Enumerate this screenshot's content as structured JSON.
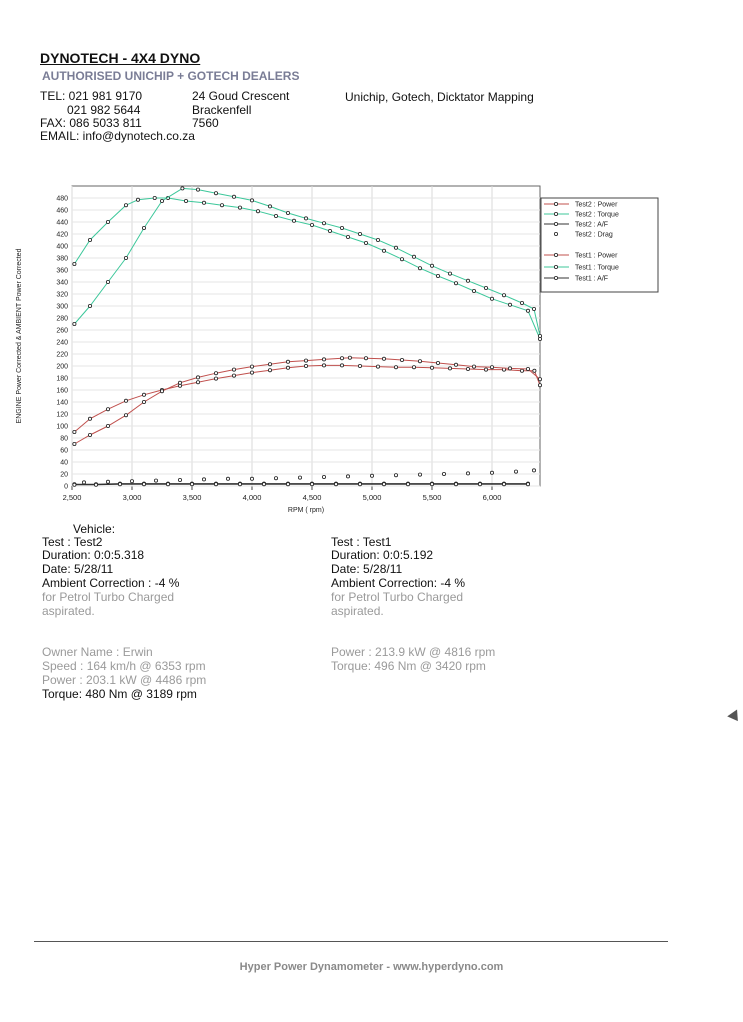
{
  "header": {
    "company": "DYNOTECH - 4X4 DYNO",
    "dealers": "AUTHORISED UNICHIP + GOTECH DEALERS",
    "tel_line1": "TEL: 021 981 9170",
    "tel_line2": "021 982 5644",
    "fax": "FAX: 086 5033 811",
    "email": "EMAIL: info@dynotech.co.za",
    "address1": "24 Goud Crescent",
    "address2": "Brackenfell",
    "address3": "7560",
    "services": "Unichip, Gotech, Dicktator Mapping"
  },
  "colors": {
    "power": "#c0504d",
    "torque": "#3cc79a",
    "af": "#333333",
    "drag": "#777777",
    "marker": "#222222"
  },
  "chart_data": {
    "type": "line",
    "title": "",
    "xlabel": "RPM ( rpm)",
    "ylabel": "ENGINE Power Corrected & AMBIENT Power Corrected",
    "xlim": [
      2500,
      6400
    ],
    "ylim": [
      0,
      500
    ],
    "x_ticks": [
      2500,
      3000,
      3500,
      4000,
      4500,
      5000,
      5500,
      6000
    ],
    "x_tick_labels": [
      "2,500",
      "3,000",
      "3,500",
      "4,000",
      "4,500",
      "5,000",
      "5,500",
      "6,000"
    ],
    "y_ticks": [
      0,
      20,
      40,
      60,
      80,
      100,
      120,
      140,
      160,
      180,
      200,
      220,
      240,
      260,
      280,
      300,
      320,
      340,
      360,
      380,
      400,
      420,
      440,
      460,
      480
    ],
    "grid": true,
    "legend_position": "right",
    "legend": [
      "Test2 : Power",
      "Test2 : Torque",
      "Test2 : A/F",
      "Test2 : Drag",
      "Test1 : Power",
      "Test1 : Torque",
      "Test1 : A/F"
    ],
    "series": [
      {
        "name": "Test2 : Power",
        "x": [
          2520,
          2650,
          2800,
          2950,
          3100,
          3250,
          3400,
          3550,
          3700,
          3850,
          4000,
          4150,
          4300,
          4450,
          4600,
          4750,
          4900,
          5050,
          5200,
          5350,
          5500,
          5650,
          5800,
          5950,
          6100,
          6250,
          6353,
          6400
        ],
        "y": [
          90,
          112,
          128,
          142,
          152,
          160,
          167,
          173,
          179,
          184,
          189,
          193,
          197,
          200,
          201,
          201,
          200,
          199,
          198,
          198,
          197,
          196,
          195,
          194,
          194,
          192,
          192,
          168
        ]
      },
      {
        "name": "Test2 : Torque",
        "x": [
          2520,
          2650,
          2800,
          2950,
          3050,
          3189,
          3300,
          3450,
          3600,
          3750,
          3900,
          4050,
          4200,
          4350,
          4500,
          4650,
          4800,
          4950,
          5100,
          5250,
          5400,
          5550,
          5700,
          5850,
          6000,
          6150,
          6300,
          6400
        ],
        "y": [
          370,
          410,
          440,
          468,
          477,
          480,
          480,
          475,
          472,
          468,
          464,
          458,
          450,
          442,
          435,
          425,
          415,
          405,
          392,
          378,
          363,
          350,
          338,
          325,
          312,
          302,
          292,
          245
        ]
      },
      {
        "name": "Test2 : A/F",
        "x": [
          2520,
          2700,
          2900,
          3100,
          3300,
          3500,
          3700,
          3900,
          4100,
          4300,
          4500,
          4700,
          4900,
          5100,
          5300,
          5500,
          5700,
          5900,
          6100,
          6300
        ],
        "y": [
          3,
          3,
          4,
          4,
          4,
          4,
          4,
          4,
          4,
          4,
          4,
          4,
          4,
          4,
          4,
          4,
          4,
          4,
          4,
          4
        ]
      },
      {
        "name": "Test2 : Drag",
        "x": [
          2600,
          2800,
          3000,
          3200,
          3400,
          3600,
          3800,
          4000,
          4200,
          4400,
          4600,
          4800,
          5000,
          5200,
          5400,
          5600,
          5800,
          6000,
          6200,
          6350
        ],
        "y": [
          6,
          7,
          8,
          9,
          10,
          11,
          12,
          12,
          13,
          14,
          15,
          16,
          17,
          18,
          19,
          20,
          21,
          22,
          24,
          26
        ]
      },
      {
        "name": "Test1 : Power",
        "x": [
          2520,
          2650,
          2800,
          2950,
          3100,
          3250,
          3400,
          3550,
          3700,
          3850,
          4000,
          4150,
          4300,
          4450,
          4600,
          4750,
          4816,
          4950,
          5100,
          5250,
          5400,
          5550,
          5700,
          5850,
          6000,
          6150,
          6300,
          6400
        ],
        "y": [
          70,
          85,
          100,
          118,
          140,
          158,
          172,
          181,
          188,
          194,
          199,
          203,
          207,
          209,
          211,
          213,
          213.9,
          213,
          212,
          210,
          208,
          205,
          202,
          199,
          198,
          196,
          195,
          178
        ]
      },
      {
        "name": "Test1 : Torque",
        "x": [
          2520,
          2650,
          2800,
          2950,
          3100,
          3250,
          3420,
          3550,
          3700,
          3850,
          4000,
          4150,
          4300,
          4450,
          4600,
          4750,
          4900,
          5050,
          5200,
          5350,
          5500,
          5650,
          5800,
          5950,
          6100,
          6250,
          6350,
          6400
        ],
        "y": [
          270,
          300,
          340,
          380,
          430,
          475,
          496,
          494,
          488,
          482,
          476,
          466,
          455,
          446,
          438,
          430,
          420,
          410,
          397,
          382,
          367,
          354,
          342,
          330,
          318,
          305,
          295,
          250
        ]
      },
      {
        "name": "Test1 : A/F",
        "x": [
          2520,
          2700,
          2900,
          3100,
          3300,
          3500,
          3700,
          3900,
          4100,
          4300,
          4500,
          4700,
          4900,
          5100,
          5300,
          5500,
          5700,
          5900,
          6100,
          6300
        ],
        "y": [
          2,
          2,
          3,
          3,
          3,
          3,
          3,
          3,
          3,
          3,
          3,
          3,
          3,
          3,
          3,
          3,
          3,
          3,
          3,
          3
        ]
      }
    ]
  },
  "results": {
    "vehicle_label": "Vehicle:",
    "test2": {
      "test": "Test   : Test2",
      "duration": "Duration: 0:0:5.318",
      "date": "Date:  5/28/11",
      "ambient": "Ambient Correction : -4 %",
      "note1": " for Petrol Turbo Charged",
      "note2": "aspirated."
    },
    "test1": {
      "test": "Test    : Test1",
      "duration": "Duration: 0:0:5.192",
      "date": "Date:  5/28/11",
      "ambient": "Ambient Correction: -4 %",
      "note1": " for Petrol Turbo Charged",
      "note2": "aspirated."
    },
    "owner": "Owner Name : Erwin",
    "speed": "Speed : 164 km/h @ 6353 rpm",
    "power2": "Power : 203.1 kW @ 4486 rpm",
    "torque2": "Torque: 480 Nm @ 3189 rpm",
    "power1": "Power : 213.9 kW @ 4816 rpm",
    "torque1": "Torque: 496 Nm @ 3420 rpm"
  },
  "footer": {
    "text": "Hyper Power Dynamometer  -  www.hyperdyno.com"
  }
}
